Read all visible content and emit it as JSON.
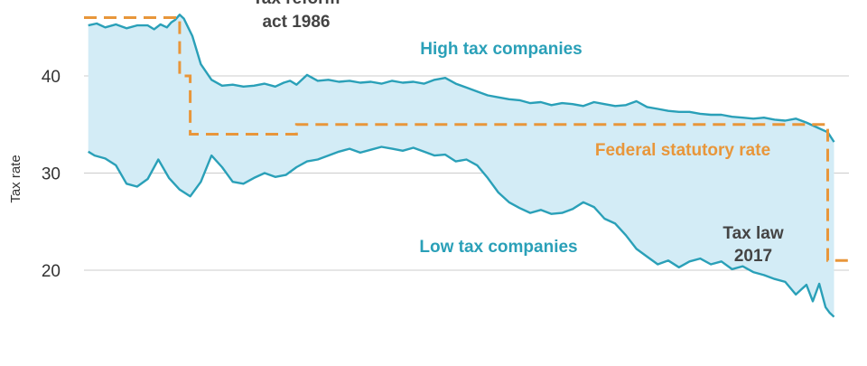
{
  "chart_data": {
    "type": "area",
    "ylabel": "Tax rate",
    "xlim": [
      1983,
      2019
    ],
    "ylim": [
      10,
      48
    ],
    "yticks": [
      10,
      20,
      30,
      40
    ],
    "grid": "horizontal",
    "colors": {
      "band_fill": "#d3ecf6",
      "company_line": "#2aa0b8",
      "statutory_line": "#e8963a",
      "label_teal": "#2aa0b8",
      "label_orange": "#e8963a",
      "label_gray": "#444444",
      "grid": "#cccccc"
    },
    "series": [
      {
        "name": "High tax companies",
        "x": [
          1983.2,
          1983.6,
          1984.0,
          1984.5,
          1985.0,
          1985.5,
          1986.0,
          1986.3,
          1986.6,
          1986.9,
          1987.1,
          1987.3,
          1987.5,
          1987.7,
          1987.9,
          1988.1,
          1988.5,
          1989.0,
          1989.5,
          1990.0,
          1990.5,
          1991.0,
          1991.5,
          1992.0,
          1992.4,
          1992.7,
          1993.0,
          1993.5,
          1994.0,
          1994.5,
          1995.0,
          1995.5,
          1996.0,
          1996.5,
          1997.0,
          1997.5,
          1998.0,
          1998.5,
          1999.0,
          1999.5,
          2000.0,
          2000.5,
          2001.0,
          2001.5,
          2002.0,
          2002.5,
          2003.0,
          2003.5,
          2004.0,
          2004.5,
          2005.0,
          2005.5,
          2006.0,
          2006.5,
          2007.0,
          2007.5,
          2008.0,
          2008.5,
          2009.0,
          2009.5,
          2010.0,
          2010.5,
          2011.0,
          2011.5,
          2012.0,
          2012.5,
          2013.0,
          2013.5,
          2014.0,
          2014.5,
          2015.0,
          2015.5,
          2016.0,
          2016.5,
          2017.0,
          2017.5,
          2018.0,
          2018.3
        ],
        "values": [
          45.2,
          45.4,
          45.0,
          45.3,
          44.9,
          45.2,
          45.2,
          44.8,
          45.3,
          45.0,
          45.5,
          45.8,
          46.3,
          45.9,
          45.0,
          44.1,
          41.2,
          39.6,
          39.0,
          39.1,
          38.9,
          39.0,
          39.2,
          38.9,
          39.3,
          39.5,
          39.1,
          40.1,
          39.5,
          39.6,
          39.4,
          39.5,
          39.3,
          39.4,
          39.2,
          39.5,
          39.3,
          39.4,
          39.2,
          39.6,
          39.8,
          39.2,
          38.8,
          38.4,
          38.0,
          37.8,
          37.6,
          37.5,
          37.2,
          37.3,
          37.0,
          37.2,
          37.1,
          36.9,
          37.3,
          37.1,
          36.9,
          37.0,
          37.4,
          36.8,
          36.6,
          36.4,
          36.3,
          36.3,
          36.1,
          36.0,
          36.0,
          35.8,
          35.7,
          35.6,
          35.7,
          35.5,
          35.4,
          35.6,
          35.2,
          34.7,
          34.2,
          33.2
        ]
      },
      {
        "name": "Low tax companies",
        "x": [
          1983.2,
          1983.5,
          1984.0,
          1984.5,
          1985.0,
          1985.5,
          1986.0,
          1986.5,
          1987.0,
          1987.5,
          1988.0,
          1988.5,
          1989.0,
          1989.5,
          1990.0,
          1990.5,
          1991.0,
          1991.5,
          1992.0,
          1992.5,
          1993.0,
          1993.5,
          1994.0,
          1994.5,
          1995.0,
          1995.5,
          1996.0,
          1996.5,
          1997.0,
          1997.5,
          1998.0,
          1998.5,
          1999.0,
          1999.5,
          2000.0,
          2000.5,
          2001.0,
          2001.5,
          2002.0,
          2002.5,
          2003.0,
          2003.5,
          2004.0,
          2004.5,
          2005.0,
          2005.5,
          2006.0,
          2006.5,
          2007.0,
          2007.5,
          2008.0,
          2008.5,
          2009.0,
          2009.5,
          2010.0,
          2010.5,
          2011.0,
          2011.5,
          2012.0,
          2012.5,
          2013.0,
          2013.5,
          2014.0,
          2014.5,
          2015.0,
          2015.5,
          2016.0,
          2016.5,
          2017.0,
          2017.3,
          2017.6,
          2017.9,
          2018.1,
          2018.3
        ],
        "values": [
          32.2,
          31.8,
          31.5,
          30.8,
          28.9,
          28.6,
          29.4,
          31.4,
          29.5,
          28.3,
          27.6,
          29.1,
          31.8,
          30.6,
          29.1,
          28.9,
          29.5,
          30.0,
          29.6,
          29.8,
          30.6,
          31.2,
          31.4,
          31.8,
          32.2,
          32.5,
          32.1,
          32.4,
          32.7,
          32.5,
          32.3,
          32.6,
          32.2,
          31.8,
          31.9,
          31.2,
          31.4,
          30.8,
          29.5,
          28.0,
          27.0,
          26.4,
          25.9,
          26.2,
          25.8,
          25.9,
          26.3,
          27.0,
          26.5,
          25.3,
          24.8,
          23.6,
          22.2,
          21.4,
          20.6,
          21.0,
          20.3,
          20.9,
          21.2,
          20.6,
          20.9,
          20.1,
          20.4,
          19.8,
          19.5,
          19.1,
          18.8,
          17.5,
          18.5,
          16.8,
          18.6,
          16.2,
          15.6,
          15.2
        ]
      },
      {
        "name": "Federal statutory rate",
        "x": [
          1983.0,
          1987.5,
          1987.5,
          1988.0,
          1988.0,
          1991.3,
          1991.3,
          1993.0,
          1993.0,
          2018.0,
          2018.0,
          2019.0
        ],
        "values": [
          46,
          46,
          40,
          40,
          34,
          34,
          34,
          34,
          35,
          35,
          21,
          21
        ]
      }
    ],
    "annotations": [
      {
        "id": "high",
        "text": "High tax companies"
      },
      {
        "id": "low",
        "text": "Low tax companies"
      },
      {
        "id": "fed",
        "text": "Federal statutory rate"
      },
      {
        "id": "reform1",
        "text": "Tax reform"
      },
      {
        "id": "reform2",
        "text": "act 1986"
      },
      {
        "id": "law1",
        "text": "Tax law"
      },
      {
        "id": "law2",
        "text": "2017"
      }
    ]
  }
}
